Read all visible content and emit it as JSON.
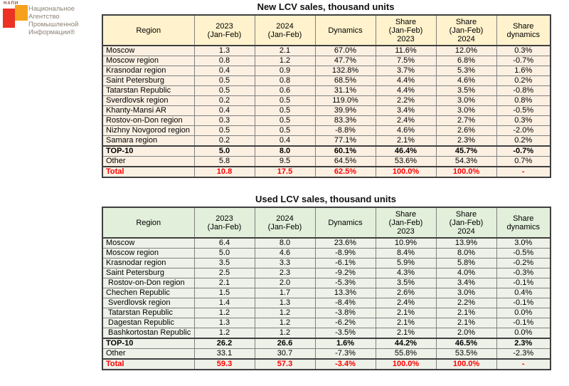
{
  "logo": {
    "acronym": "НАПИ",
    "lines": [
      "Национальное",
      "Агентство",
      "Промышленной",
      "Информации®"
    ],
    "colors": {
      "red": "#EB3223",
      "orange": "#F5A11E",
      "text": "#8D8377",
      "acronym": "#8A4A3A"
    }
  },
  "colors": {
    "total_text": "#FF0000",
    "grid": "#808080",
    "outline": "#3F3F3F"
  },
  "tables": [
    {
      "title": "New LCV sales, thousand units",
      "theme": {
        "header_bg": "#FFF2CC",
        "row_bg": "#FCF0E3"
      },
      "columns": [
        "Region",
        "2023\n(Jan-Feb)",
        "2024\n(Jan-Feb)",
        "Dynamics",
        "Share\n(Jan-Feb)\n2023",
        "Share\n(Jan-Feb)\n2024",
        "Share\ndynamics"
      ],
      "rows": [
        {
          "style": "normal",
          "cells": [
            "Moscow",
            "1.3",
            "2.1",
            "67.0%",
            "11.6%",
            "12.0%",
            "0.3%"
          ]
        },
        {
          "style": "normal",
          "cells": [
            "Moscow region",
            "0.8",
            "1.2",
            "47.7%",
            "7.5%",
            "6.8%",
            "-0.7%"
          ]
        },
        {
          "style": "normal",
          "cells": [
            "Krasnodar region",
            "0.4",
            "0.9",
            "132.8%",
            "3.7%",
            "5.3%",
            "1.6%"
          ]
        },
        {
          "style": "normal",
          "cells": [
            "Saint Petersburg",
            "0.5",
            "0.8",
            "68.5%",
            "4.4%",
            "4.6%",
            "0.2%"
          ]
        },
        {
          "style": "normal",
          "cells": [
            "Tatarstan Republic",
            "0.5",
            "0.6",
            "31.1%",
            "4.4%",
            "3.5%",
            "-0.8%"
          ]
        },
        {
          "style": "normal",
          "cells": [
            "Sverdlovsk region",
            "0.2",
            "0.5",
            "119.0%",
            "2.2%",
            "3.0%",
            "0.8%"
          ]
        },
        {
          "style": "normal",
          "cells": [
            "Khanty-Mansi AR",
            "0.4",
            "0.5",
            "39.9%",
            "3.4%",
            "3.0%",
            "-0.5%"
          ]
        },
        {
          "style": "normal",
          "cells": [
            "Rostov-on-Don region",
            "0.3",
            "0.5",
            "83.3%",
            "2.4%",
            "2.7%",
            "0.3%"
          ]
        },
        {
          "style": "normal",
          "cells": [
            "Nizhny Novgorod region",
            "0.5",
            "0.5",
            "-8.8%",
            "4.6%",
            "2.6%",
            "-2.0%"
          ]
        },
        {
          "style": "normal",
          "cells": [
            "Samara region",
            "0.2",
            "0.4",
            "77.1%",
            "2.1%",
            "2.3%",
            "0.2%"
          ]
        },
        {
          "style": "bold",
          "cells": [
            "TOP-10",
            "5.0",
            "8.0",
            "60.1%",
            "46.4%",
            "45.7%",
            "-0.7%"
          ]
        },
        {
          "style": "normal",
          "cells": [
            "Other",
            "5.8",
            "9.5",
            "64.5%",
            "53.6%",
            "54.3%",
            "0.7%"
          ]
        },
        {
          "style": "total",
          "cells": [
            "Total",
            "10.8",
            "17.5",
            "62.5%",
            "100.0%",
            "100.0%",
            "-"
          ]
        }
      ]
    },
    {
      "title": "Used LCV sales, thousand units",
      "theme": {
        "header_bg": "#E2EFDA",
        "row_bg": "#EDF1E8"
      },
      "columns": [
        "Region",
        "2023\n(Jan-Feb)",
        "2024\n(Jan-Feb)",
        "Dynamics",
        "Share\n(Jan-Feb)\n2023",
        "Share\n(Jan-Feb)\n2024",
        "Share\ndynamics"
      ],
      "rows": [
        {
          "style": "normal",
          "cells": [
            "Moscow",
            "6.4",
            "8.0",
            "23.6%",
            "10.9%",
            "13.9%",
            "3.0%"
          ]
        },
        {
          "style": "normal",
          "cells": [
            "Moscow region",
            "5.0",
            "4.6",
            "-8.9%",
            "8.4%",
            "8.0%",
            "-0.5%"
          ]
        },
        {
          "style": "normal",
          "cells": [
            "Krasnodar region",
            "3.5",
            "3.3",
            "-6.1%",
            "5.9%",
            "5.8%",
            "-0.2%"
          ]
        },
        {
          "style": "normal",
          "cells": [
            "Saint Petersburg",
            "2.5",
            "2.3",
            "-9.2%",
            "4.3%",
            "4.0%",
            "-0.3%"
          ]
        },
        {
          "style": "normal",
          "cells": [
            " Rostov-on-Don region",
            "2.1",
            "2.0",
            "-5.3%",
            "3.5%",
            "3.4%",
            "-0.1%"
          ]
        },
        {
          "style": "normal",
          "cells": [
            "Chechen Republic",
            "1.5",
            "1.7",
            "13.3%",
            "2.6%",
            "3.0%",
            "0.4%"
          ]
        },
        {
          "style": "normal",
          "cells": [
            " Sverdlovsk region",
            "1.4",
            "1.3",
            "-8.4%",
            "2.4%",
            "2.2%",
            "-0.1%"
          ]
        },
        {
          "style": "normal",
          "cells": [
            " Tatarstan Republic",
            "1.2",
            "1.2",
            "-3.8%",
            "2.1%",
            "2.1%",
            "0.0%"
          ]
        },
        {
          "style": "normal",
          "cells": [
            " Dagestan Republic",
            "1.3",
            "1.2",
            "-6.2%",
            "2.1%",
            "2.1%",
            "-0.1%"
          ]
        },
        {
          "style": "normal",
          "cells": [
            " Bashkortostan Republic",
            "1.2",
            "1.2",
            "-3.5%",
            "2.1%",
            "2.0%",
            "0.0%"
          ]
        },
        {
          "style": "bold",
          "cells": [
            "TOP-10",
            "26.2",
            "26.6",
            "1.6%",
            "44.2%",
            "46.5%",
            "2.3%"
          ]
        },
        {
          "style": "normal",
          "cells": [
            "Other",
            "33.1",
            "30.7",
            "-7.3%",
            "55.8%",
            "53.5%",
            "-2.3%"
          ]
        },
        {
          "style": "total",
          "cells": [
            "Total",
            "59.3",
            "57.3",
            "-3.4%",
            "100.0%",
            "100.0%",
            "-"
          ]
        }
      ]
    }
  ]
}
